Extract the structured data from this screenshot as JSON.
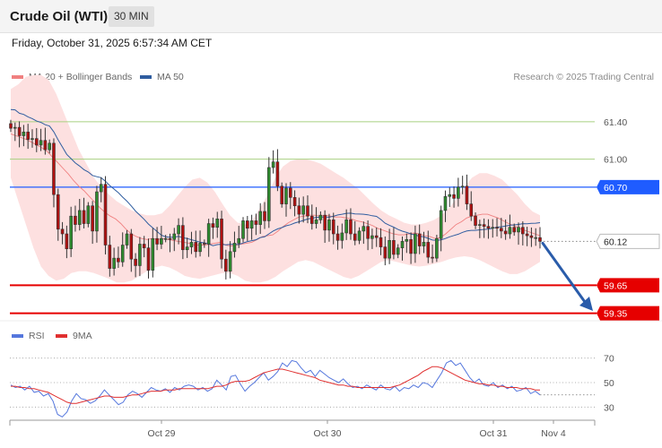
{
  "header": {
    "title": "Crude Oil (WTI)",
    "timeframe": "30 MIN",
    "datetime": "Friday, October 31, 2025 6:57:34 AM CET",
    "credit": "Research © 2025 Trading Central"
  },
  "colors": {
    "bollinger_fill": "#fde0e0",
    "ma20": "#f08080",
    "ma50": "#2f5da0",
    "resistance": "#1f5cff",
    "support": "#e60000",
    "pivot_lines": "#a8d080",
    "candle_up": "#2e8b2e",
    "candle_down": "#b01010",
    "rsi": "#5577dd",
    "rsi_ma": "#e03030",
    "arrow": "#2a5caa"
  },
  "chart_data": [
    {
      "type": "candlestick",
      "legend": [
        {
          "label": "MA 20 + Bollinger Bands",
          "color": "#f08080"
        },
        {
          "label": "MA 50",
          "color": "#2f5da0"
        }
      ],
      "ylim": [
        59.27,
        61.6
      ],
      "levels": [
        {
          "value": 61.4,
          "label": "61.40",
          "style": "pivot"
        },
        {
          "value": 61.0,
          "label": "61.00",
          "style": "pivot"
        },
        {
          "value": 60.7,
          "label": "60.70",
          "style": "resistance"
        },
        {
          "value": 60.12,
          "label": "60.12",
          "style": "last"
        },
        {
          "value": 59.65,
          "label": "59.65",
          "style": "support"
        },
        {
          "value": 59.35,
          "label": "59.35",
          "style": "support"
        }
      ],
      "x_ticks": [
        "Oct 29",
        "Oct 30",
        "Oct 31",
        "Nov 4"
      ],
      "closes": [
        61.33,
        61.34,
        61.25,
        61.29,
        61.21,
        61.22,
        61.15,
        61.2,
        61.1,
        61.17,
        60.62,
        60.25,
        60.2,
        60.04,
        60.39,
        60.3,
        60.45,
        60.31,
        60.5,
        60.23,
        60.65,
        60.73,
        60.08,
        59.83,
        59.94,
        59.9,
        60.08,
        60.2,
        59.93,
        59.86,
        60.09,
        60.05,
        59.81,
        60.15,
        60.09,
        60.15,
        60.15,
        60.14,
        60.2,
        60.29,
        60.03,
        60.06,
        60.11,
        60.01,
        60.1,
        60.09,
        60.31,
        60.27,
        60.36,
        59.93,
        59.8,
        60.01,
        60.1,
        60.15,
        60.34,
        60.26,
        60.34,
        60.3,
        60.44,
        60.34,
        60.91,
        60.97,
        60.71,
        60.52,
        60.69,
        60.59,
        60.5,
        60.41,
        60.5,
        60.39,
        60.31,
        60.35,
        60.4,
        60.24,
        60.35,
        60.2,
        60.13,
        60.21,
        60.35,
        60.2,
        60.13,
        60.23,
        60.28,
        60.15,
        60.18,
        60.16,
        60.06,
        59.94,
        60.13,
        59.98,
        60.05,
        60.12,
        60.14,
        59.99,
        60.2,
        60.07,
        60.11,
        59.95,
        59.94,
        60.15,
        60.45,
        60.6,
        60.62,
        60.58,
        60.7,
        60.71,
        60.52,
        60.39,
        60.29,
        60.3,
        60.28,
        60.26,
        60.27,
        60.26,
        60.23,
        60.2,
        60.27,
        60.22,
        60.27,
        60.2,
        60.18,
        60.16,
        60.16,
        60.12
      ],
      "ma20": [
        61.27,
        61.25,
        61.23,
        61.21,
        61.18,
        61.15,
        61.12,
        61.08,
        61.02,
        60.96,
        60.9,
        60.84,
        60.77,
        60.71,
        60.66,
        60.6,
        60.54,
        60.48,
        60.43,
        60.39,
        60.36,
        60.31,
        60.25,
        60.2,
        60.17,
        60.15,
        60.14,
        60.15,
        60.14,
        60.15,
        60.14,
        60.13,
        60.12,
        60.11,
        60.1,
        60.08,
        60.08,
        60.08,
        60.09,
        60.1,
        60.11,
        60.08,
        60.07,
        60.08,
        60.09,
        60.1,
        60.11,
        60.14,
        60.17,
        60.18,
        60.19,
        60.23,
        60.28,
        60.32,
        60.35,
        60.38,
        60.39,
        60.4,
        60.4,
        60.39,
        60.4,
        60.39,
        60.38,
        60.38,
        60.37,
        60.36,
        60.34,
        60.33,
        60.31,
        60.29,
        60.26,
        60.24,
        60.22,
        60.2,
        60.19,
        60.19,
        60.2,
        60.21,
        60.2,
        60.18,
        60.17,
        60.15,
        60.16,
        60.2,
        60.25,
        60.3,
        60.33,
        60.37,
        60.39,
        60.4,
        60.41,
        60.41,
        60.39,
        60.37,
        60.34,
        60.31,
        60.29,
        60.26,
        60.24,
        60.22,
        60.2,
        60.18
      ],
      "bb_upper": [
        61.75,
        61.8,
        61.88,
        61.9,
        61.9,
        61.85,
        61.7,
        61.5,
        61.3,
        61.1,
        60.95,
        60.8,
        60.7,
        60.62,
        60.55,
        60.5,
        60.45,
        60.42,
        60.4,
        60.4,
        60.42,
        60.5,
        60.6,
        60.7,
        60.78,
        60.8,
        60.75,
        60.65,
        60.52,
        60.4,
        60.32,
        60.3,
        60.35,
        60.48,
        60.62,
        60.8,
        60.92,
        60.98,
        61.0,
        61.0,
        60.98,
        60.95,
        60.9,
        60.85,
        60.8,
        60.74,
        60.68,
        60.6,
        60.52,
        60.45,
        60.4,
        60.36,
        60.32,
        60.3,
        60.3,
        60.32,
        60.35,
        60.4,
        60.48,
        60.58,
        60.7,
        60.8,
        60.85,
        60.85,
        60.82,
        60.78,
        60.7,
        60.62,
        60.52,
        60.44,
        60.4
      ],
      "bb_lower": [
        60.8,
        60.55,
        60.3,
        60.05,
        59.85,
        59.75,
        59.7,
        59.72,
        59.78,
        59.8,
        59.8,
        59.78,
        59.75,
        59.72,
        59.68,
        59.68,
        59.7,
        59.75,
        59.8,
        59.84,
        59.86,
        59.84,
        59.8,
        59.75,
        59.73,
        59.72,
        59.74,
        59.76,
        59.78,
        59.78,
        59.75,
        59.7,
        59.68,
        59.68,
        59.7,
        59.74,
        59.8,
        59.85,
        59.9,
        59.92,
        59.9,
        59.86,
        59.82,
        59.78,
        59.74,
        59.72,
        59.75,
        59.8,
        59.85,
        59.9,
        59.92,
        59.9,
        59.88,
        59.86,
        59.85,
        59.86,
        59.88,
        59.9,
        59.93,
        59.95,
        59.96,
        59.95,
        59.92,
        59.88,
        59.84,
        59.8,
        59.77,
        59.77,
        59.8,
        59.85,
        59.9
      ]
    },
    {
      "type": "line",
      "legend": [
        {
          "label": "RSI",
          "color": "#5577dd"
        },
        {
          "label": "9MA",
          "color": "#e03030"
        }
      ],
      "ylim": [
        20,
        80
      ],
      "y_ticks": [
        70,
        50,
        30
      ],
      "series": [
        {
          "name": "RSI",
          "values": [
            48,
            46,
            47,
            44,
            47,
            42,
            43,
            39,
            41,
            35,
            24,
            22,
            26,
            35,
            41,
            37,
            36,
            33,
            35,
            39,
            44,
            40,
            36,
            32,
            34,
            40,
            43,
            41,
            38,
            42,
            46,
            44,
            43,
            45,
            42,
            46,
            44,
            47,
            48,
            47,
            44,
            46,
            43,
            45,
            52,
            48,
            44,
            55,
            56,
            49,
            43,
            47,
            50,
            54,
            58,
            52,
            55,
            59,
            66,
            63,
            68,
            67,
            62,
            58,
            60,
            55,
            60,
            57,
            54,
            52,
            50,
            53,
            49,
            46,
            47,
            45,
            48,
            46,
            44,
            48,
            45,
            44,
            47,
            43,
            46,
            45,
            48,
            46,
            50,
            49,
            46,
            52,
            58,
            66,
            68,
            64,
            66,
            60,
            54,
            50,
            53,
            48,
            47,
            50,
            46,
            48,
            45,
            47,
            43,
            44,
            46,
            41,
            43,
            40
          ]
        },
        {
          "name": "9MA",
          "values": [
            47,
            47,
            46,
            46,
            45,
            45,
            44,
            43,
            42,
            40,
            38,
            36,
            34,
            33,
            33,
            34,
            35,
            36,
            37,
            38,
            39,
            39,
            38,
            38,
            38,
            39,
            40,
            40,
            41,
            42,
            43,
            43,
            43,
            44,
            44,
            44,
            45,
            45,
            45,
            45,
            45,
            45,
            45,
            46,
            47,
            47,
            48,
            50,
            51,
            51,
            51,
            52,
            54,
            56,
            58,
            59,
            60,
            61,
            61,
            60,
            59,
            58,
            57,
            56,
            55,
            54,
            52,
            51,
            50,
            49,
            48,
            48,
            47,
            47,
            46,
            46,
            46,
            46,
            46,
            46,
            46,
            46,
            47,
            48,
            50,
            52,
            54,
            56,
            59,
            61,
            63,
            63,
            62,
            60,
            58,
            56,
            54,
            52,
            51,
            50,
            49,
            49,
            48,
            48,
            47,
            47,
            46,
            46,
            46,
            45,
            45,
            45,
            44,
            44
          ]
        }
      ]
    }
  ]
}
